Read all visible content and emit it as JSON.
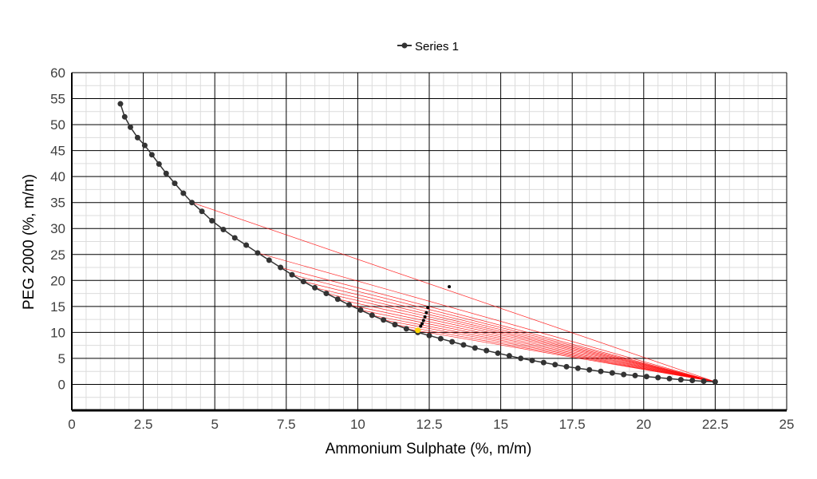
{
  "chart_data": {
    "type": "scatter",
    "title": "",
    "xlabel": "Ammonium Sulphate (%, m/m)",
    "ylabel": "PEG 2000 (%, m/m)",
    "xlim": [
      0,
      25
    ],
    "ylim": [
      -5,
      60
    ],
    "x_ticks": [
      0,
      2.5,
      5,
      7.5,
      10,
      12.5,
      15,
      17.5,
      20,
      22.5,
      25
    ],
    "x_tick_labels": [
      "0",
      "2.5",
      "5",
      "7.5",
      "10",
      "12.5",
      "15",
      "17.5",
      "20",
      "22.5",
      "25"
    ],
    "y_ticks": [
      0,
      5,
      10,
      15,
      20,
      25,
      30,
      35,
      40,
      45,
      50,
      55,
      60
    ],
    "y_tick_labels": [
      "0",
      "5",
      "10",
      "15",
      "20",
      "25",
      "30",
      "35",
      "40",
      "45",
      "50",
      "55",
      "60"
    ],
    "grid": true,
    "legend": {
      "position": "top-center",
      "entries": [
        "Series 1"
      ]
    },
    "binodal_series": {
      "name": "Series 1",
      "color": "#333333",
      "x": [
        1.7,
        1.85,
        2.05,
        2.3,
        2.55,
        2.8,
        3.05,
        3.3,
        3.6,
        3.9,
        4.2,
        4.55,
        4.9,
        5.3,
        5.7,
        6.1,
        6.5,
        6.9,
        7.3,
        7.7,
        8.1,
        8.5,
        8.9,
        9.3,
        9.7,
        10.1,
        10.5,
        10.9,
        11.3,
        11.7,
        12.1,
        12.5,
        12.9,
        13.3,
        13.7,
        14.1,
        14.5,
        14.9,
        15.3,
        15.7,
        16.1,
        16.5,
        16.9,
        17.3,
        17.7,
        18.1,
        18.5,
        18.9,
        19.3,
        19.7,
        20.1,
        20.5,
        20.9,
        21.3,
        21.7,
        22.1,
        22.5
      ],
      "y": [
        54,
        51.5,
        49.5,
        47.5,
        46,
        44.2,
        42.4,
        40.6,
        38.7,
        36.8,
        35,
        33.3,
        31.5,
        29.8,
        28.2,
        26.8,
        25.3,
        23.9,
        22.5,
        21.1,
        19.8,
        18.6,
        17.5,
        16.4,
        15.3,
        14.3,
        13.3,
        12.4,
        11.5,
        10.7,
        10,
        9.4,
        8.8,
        8.2,
        7.6,
        7,
        6.5,
        6,
        5.5,
        5,
        4.6,
        4.2,
        3.8,
        3.4,
        3.1,
        2.8,
        2.5,
        2.2,
        1.9,
        1.7,
        1.5,
        1.3,
        1.1,
        0.9,
        0.75,
        0.6,
        0.5
      ]
    },
    "tie_lines": {
      "color": "#ff0000",
      "bottom_phase_end": [
        22.5,
        0.5
      ],
      "top_phase_x": [
        4.2,
        6.5,
        7.3,
        7.7,
        8.1,
        8.5,
        8.9,
        9.3,
        9.7,
        10.1,
        10.5,
        10.9,
        11.3,
        11.7
      ],
      "top_phase_y": [
        35,
        25.3,
        22.5,
        21.1,
        19.8,
        18.6,
        17.5,
        16.4,
        15.3,
        14.3,
        13.3,
        12.4,
        11.5,
        10.7
      ]
    },
    "feed_points": {
      "color": "#000000",
      "x": [
        13.2,
        12.45,
        12.4,
        12.35,
        12.3,
        12.25,
        12.2
      ],
      "y": [
        18.8,
        14.8,
        13.8,
        13,
        12.3,
        11.7,
        11.2
      ]
    },
    "critical_point": {
      "x": 12.1,
      "y": 10.4,
      "color": "#ffd400"
    }
  }
}
